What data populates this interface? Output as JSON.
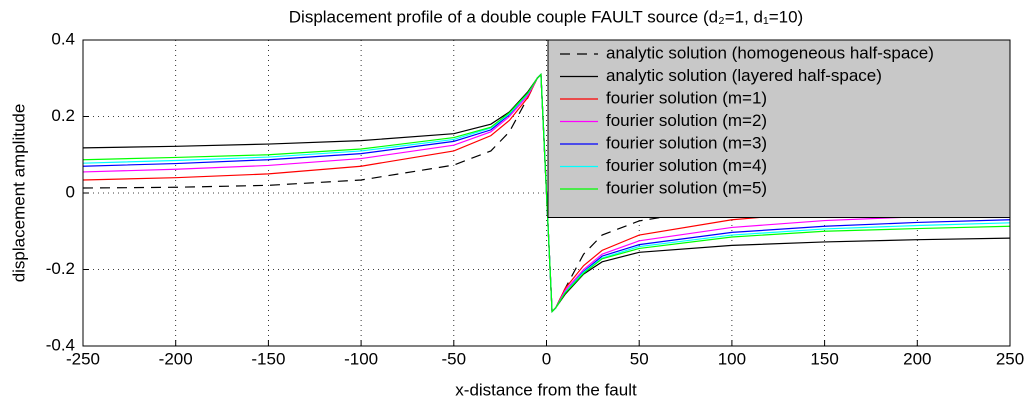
{
  "chart_data": {
    "type": "line",
    "title": "Displacement profile of a double couple FAULT source (d₂=1, d₁=10)",
    "xlabel": "x-distance from the fault",
    "ylabel": "displacement amplitude",
    "x": [
      -250,
      -200,
      -150,
      -100,
      -50,
      -30,
      -20,
      -10,
      -5,
      -3,
      0,
      3,
      5,
      10,
      20,
      30,
      50,
      100,
      150,
      200,
      250
    ],
    "series": [
      {
        "name": "analytic solution (homogeneous half-space)",
        "color": "#000000",
        "linestyle": "dashed",
        "values": [
          0.013,
          0.015,
          0.02,
          0.034,
          0.073,
          0.11,
          0.16,
          0.25,
          0.3,
          0.31,
          0,
          -0.31,
          -0.3,
          -0.25,
          -0.16,
          -0.11,
          -0.073,
          -0.034,
          -0.02,
          -0.015,
          -0.013
        ]
      },
      {
        "name": "analytic solution (layered half-space)",
        "color": "#000000",
        "linestyle": "solid",
        "values": [
          0.118,
          0.122,
          0.128,
          0.137,
          0.155,
          0.18,
          0.212,
          0.265,
          0.3,
          0.31,
          0,
          -0.31,
          -0.3,
          -0.265,
          -0.212,
          -0.18,
          -0.155,
          -0.137,
          -0.128,
          -0.122,
          -0.118
        ]
      },
      {
        "name": "fourier solution (m=1)",
        "color": "#ff0000",
        "linestyle": "solid",
        "values": [
          0.034,
          0.04,
          0.05,
          0.07,
          0.11,
          0.15,
          0.19,
          0.25,
          0.3,
          0.31,
          0,
          -0.31,
          -0.3,
          -0.25,
          -0.19,
          -0.15,
          -0.11,
          -0.07,
          -0.05,
          -0.04,
          -0.034
        ]
      },
      {
        "name": "fourier solution (m=2)",
        "color": "#ff00ff",
        "linestyle": "solid",
        "values": [
          0.055,
          0.062,
          0.072,
          0.09,
          0.125,
          0.16,
          0.2,
          0.255,
          0.3,
          0.31,
          0,
          -0.31,
          -0.3,
          -0.255,
          -0.2,
          -0.16,
          -0.125,
          -0.09,
          -0.072,
          -0.062,
          -0.055
        ]
      },
      {
        "name": "fourier solution (m=3)",
        "color": "#0000ff",
        "linestyle": "solid",
        "values": [
          0.07,
          0.077,
          0.087,
          0.103,
          0.135,
          0.165,
          0.205,
          0.26,
          0.3,
          0.31,
          0,
          -0.31,
          -0.3,
          -0.26,
          -0.205,
          -0.165,
          -0.135,
          -0.103,
          -0.087,
          -0.077,
          -0.07
        ]
      },
      {
        "name": "fourier solution (m=4)",
        "color": "#00ffff",
        "linestyle": "solid",
        "values": [
          0.078,
          0.085,
          0.094,
          0.11,
          0.14,
          0.17,
          0.207,
          0.26,
          0.3,
          0.31,
          0,
          -0.31,
          -0.3,
          -0.26,
          -0.207,
          -0.17,
          -0.14,
          -0.11,
          -0.094,
          -0.085,
          -0.078
        ]
      },
      {
        "name": "fourier solution (m=5)",
        "color": "#00ff00",
        "linestyle": "solid",
        "values": [
          0.087,
          0.093,
          0.1,
          0.115,
          0.145,
          0.172,
          0.21,
          0.262,
          0.3,
          0.31,
          0,
          -0.31,
          -0.3,
          -0.262,
          -0.21,
          -0.172,
          -0.145,
          -0.115,
          -0.1,
          -0.093,
          -0.087
        ]
      }
    ],
    "xlim": [
      -250,
      250
    ],
    "xticks": [
      -250,
      -200,
      -150,
      -100,
      -50,
      0,
      50,
      100,
      150,
      200,
      250
    ],
    "ylim": [
      -0.4,
      0.4
    ],
    "yticks": [
      -0.4,
      -0.2,
      0,
      0.2,
      0.4
    ],
    "grid": true,
    "legend": "upper right"
  }
}
